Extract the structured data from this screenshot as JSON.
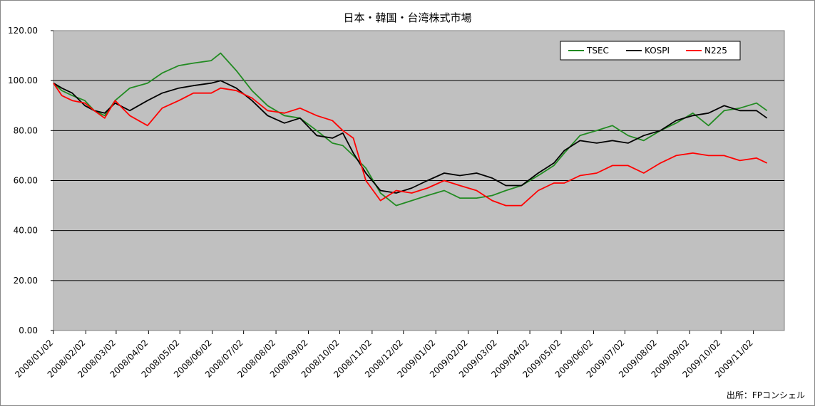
{
  "chart_data": {
    "type": "line",
    "title": "日本・韓国・台湾株式市場",
    "source_note": "出所：FPコンシェル",
    "ylim": [
      0,
      120
    ],
    "yticks": [
      "0.00",
      "20.00",
      "40.00",
      "60.00",
      "80.00",
      "100.00",
      "120.00"
    ],
    "x_tick_labels": [
      "2008/01/02",
      "2008/02/02",
      "2008/03/02",
      "2008/04/02",
      "2008/05/02",
      "2008/06/02",
      "2008/07/02",
      "2008/08/02",
      "2008/09/02",
      "2008/10/02",
      "2008/11/02",
      "2008/12/02",
      "2009/01/02",
      "2009/02/02",
      "2009/03/02",
      "2009/04/02",
      "2009/05/02",
      "2009/06/02",
      "2009/07/02",
      "2009/08/02",
      "2009/09/02",
      "2009/10/02",
      "2009/11/02"
    ],
    "grid": "horizontal",
    "legend_position": "top-right",
    "series": [
      {
        "name": "TSEC",
        "color": "#228B22",
        "x": [
          "2008/01/02",
          "2008/01/10",
          "2008/01/20",
          "2008/02/01",
          "2008/02/10",
          "2008/02/20",
          "2008/03/01",
          "2008/03/15",
          "2008/04/01",
          "2008/04/15",
          "2008/05/01",
          "2008/05/15",
          "2008/06/01",
          "2008/06/10",
          "2008/06/25",
          "2008/07/10",
          "2008/07/25",
          "2008/08/10",
          "2008/08/25",
          "2008/09/10",
          "2008/09/25",
          "2008/10/05",
          "2008/10/15",
          "2008/10/27",
          "2008/11/10",
          "2008/11/25",
          "2008/12/10",
          "2008/12/25",
          "2009/01/10",
          "2009/01/25",
          "2009/02/10",
          "2009/02/25",
          "2009/03/10",
          "2009/03/25",
          "2009/04/10",
          "2009/04/25",
          "2009/05/05",
          "2009/05/20",
          "2009/06/05",
          "2009/06/20",
          "2009/07/05",
          "2009/07/20",
          "2009/08/05",
          "2009/08/20",
          "2009/09/05",
          "2009/09/20",
          "2009/10/05",
          "2009/10/20",
          "2009/11/05",
          "2009/11/15"
        ],
        "values": [
          99,
          96,
          94,
          92,
          88,
          86,
          92,
          97,
          99,
          103,
          106,
          107,
          108,
          111,
          104,
          96,
          90,
          86,
          85,
          80,
          75,
          74,
          70,
          65,
          55,
          50,
          52,
          54,
          56,
          53,
          53,
          54,
          56,
          58,
          62,
          66,
          71,
          78,
          80,
          82,
          78,
          76,
          80,
          83,
          87,
          82,
          88,
          89,
          91,
          88
        ]
      },
      {
        "name": "KOSPI",
        "color": "#000000",
        "x": [
          "2008/01/02",
          "2008/01/10",
          "2008/01/20",
          "2008/02/01",
          "2008/02/10",
          "2008/02/20",
          "2008/03/01",
          "2008/03/15",
          "2008/04/01",
          "2008/04/15",
          "2008/05/01",
          "2008/05/15",
          "2008/06/01",
          "2008/06/10",
          "2008/06/25",
          "2008/07/10",
          "2008/07/25",
          "2008/08/10",
          "2008/08/25",
          "2008/09/10",
          "2008/09/25",
          "2008/10/05",
          "2008/10/15",
          "2008/10/27",
          "2008/11/10",
          "2008/11/25",
          "2008/12/10",
          "2008/12/25",
          "2009/01/10",
          "2009/01/25",
          "2009/02/10",
          "2009/02/25",
          "2009/03/10",
          "2009/03/25",
          "2009/04/10",
          "2009/04/25",
          "2009/05/05",
          "2009/05/20",
          "2009/06/05",
          "2009/06/20",
          "2009/07/05",
          "2009/07/20",
          "2009/08/05",
          "2009/08/20",
          "2009/09/05",
          "2009/09/20",
          "2009/10/05",
          "2009/10/20",
          "2009/11/05",
          "2009/11/15"
        ],
        "values": [
          99,
          97,
          95,
          90,
          88,
          87,
          91,
          88,
          92,
          95,
          97,
          98,
          99,
          100,
          97,
          92,
          86,
          83,
          85,
          78,
          77,
          79,
          71,
          63,
          56,
          55,
          57,
          60,
          63,
          62,
          63,
          61,
          58,
          58,
          63,
          67,
          72,
          76,
          75,
          76,
          75,
          78,
          80,
          84,
          86,
          87,
          90,
          88,
          88,
          85
        ]
      },
      {
        "name": "N225",
        "color": "#FF0000",
        "x": [
          "2008/01/02",
          "2008/01/10",
          "2008/01/20",
          "2008/02/01",
          "2008/02/10",
          "2008/02/20",
          "2008/03/01",
          "2008/03/15",
          "2008/04/01",
          "2008/04/15",
          "2008/05/01",
          "2008/05/15",
          "2008/06/01",
          "2008/06/10",
          "2008/06/25",
          "2008/07/10",
          "2008/07/25",
          "2008/08/10",
          "2008/08/25",
          "2008/09/10",
          "2008/09/25",
          "2008/10/05",
          "2008/10/15",
          "2008/10/27",
          "2008/11/10",
          "2008/11/25",
          "2008/12/10",
          "2008/12/25",
          "2009/01/10",
          "2009/01/25",
          "2009/02/10",
          "2009/02/25",
          "2009/03/10",
          "2009/03/25",
          "2009/04/10",
          "2009/04/25",
          "2009/05/05",
          "2009/05/20",
          "2009/06/05",
          "2009/06/20",
          "2009/07/05",
          "2009/07/20",
          "2009/08/05",
          "2009/08/20",
          "2009/09/05",
          "2009/09/20",
          "2009/10/05",
          "2009/10/20",
          "2009/11/05",
          "2009/11/15"
        ],
        "values": [
          99,
          94,
          92,
          91,
          88,
          85,
          92,
          86,
          82,
          89,
          92,
          95,
          95,
          97,
          96,
          93,
          88,
          87,
          89,
          86,
          84,
          80,
          77,
          60,
          52,
          56,
          55,
          57,
          60,
          58,
          56,
          52,
          50,
          50,
          56,
          59,
          59,
          62,
          63,
          66,
          66,
          63,
          67,
          70,
          71,
          70,
          70,
          68,
          69,
          67
        ]
      }
    ]
  }
}
